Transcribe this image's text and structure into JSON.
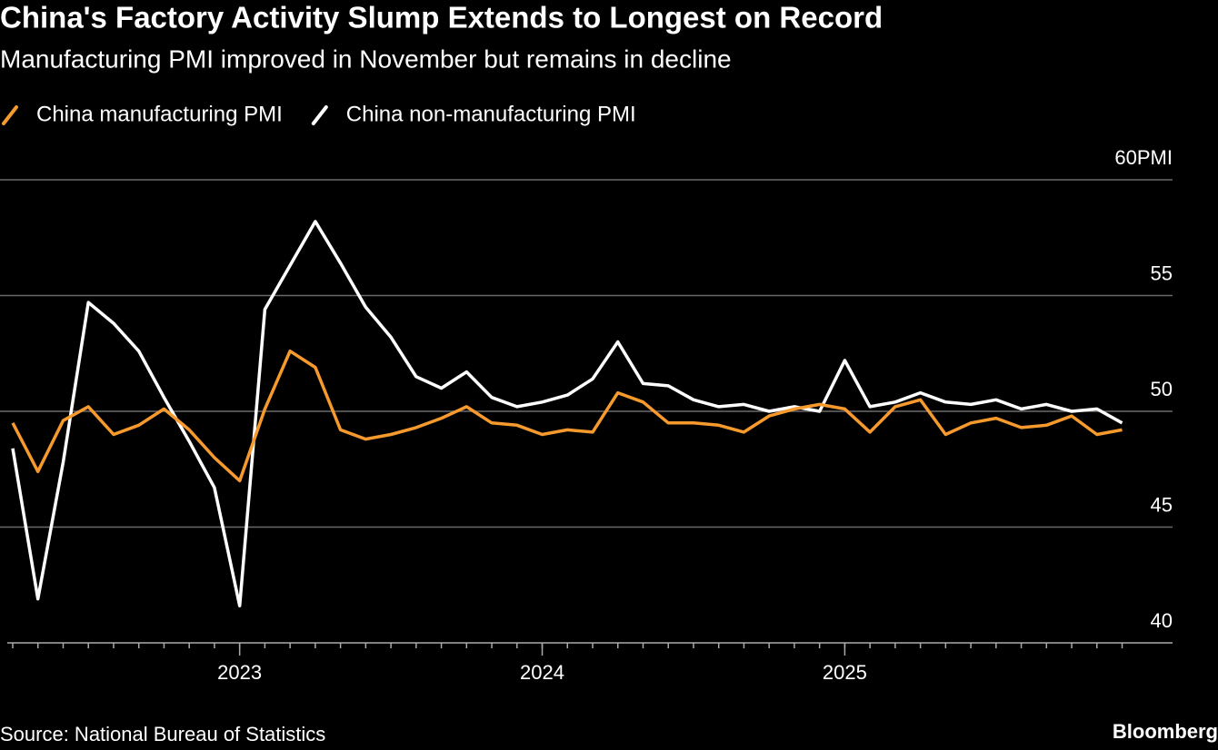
{
  "chart_data": {
    "type": "line",
    "title": "China's Factory Activity Slump Extends to Longest on Record",
    "subtitle": "Manufacturing PMI improved in November but remains in decline",
    "source": "Source: National Bureau of Statistics",
    "brand": "Bloomberg",
    "x": [
      "2022-03",
      "2022-04",
      "2022-05",
      "2022-06",
      "2022-07",
      "2022-08",
      "2022-09",
      "2022-10",
      "2022-11",
      "2022-12",
      "2023-01",
      "2023-02",
      "2023-03",
      "2023-04",
      "2023-05",
      "2023-06",
      "2023-07",
      "2023-08",
      "2023-09",
      "2023-10",
      "2023-11",
      "2023-12",
      "2024-01",
      "2024-02",
      "2024-03",
      "2024-04",
      "2024-05",
      "2024-06",
      "2024-07",
      "2024-08",
      "2024-09",
      "2024-10",
      "2024-11",
      "2024-12",
      "2025-01",
      "2025-02",
      "2025-03",
      "2025-04",
      "2025-05",
      "2025-06",
      "2025-07",
      "2025-08",
      "2025-09",
      "2025-10",
      "2025-11"
    ],
    "series": [
      {
        "name": "China manufacturing PMI",
        "color": "#f79a2e",
        "values": [
          49.5,
          47.4,
          49.6,
          50.2,
          49.0,
          49.4,
          50.1,
          49.2,
          48.0,
          47.0,
          50.1,
          52.6,
          51.9,
          49.2,
          48.8,
          49.0,
          49.3,
          49.7,
          50.2,
          49.5,
          49.4,
          49.0,
          49.2,
          49.1,
          50.8,
          50.4,
          49.5,
          49.5,
          49.4,
          49.1,
          49.8,
          50.1,
          50.3,
          50.1,
          49.1,
          50.2,
          50.5,
          49.0,
          49.5,
          49.7,
          49.3,
          49.4,
          49.8,
          49.0,
          49.2
        ]
      },
      {
        "name": "China non-manufacturing PMI",
        "color": "#ffffff",
        "values": [
          48.4,
          41.9,
          47.8,
          54.7,
          53.8,
          52.6,
          50.6,
          48.7,
          46.7,
          41.6,
          54.4,
          56.3,
          58.2,
          56.4,
          54.5,
          53.2,
          51.5,
          51.0,
          51.7,
          50.6,
          50.2,
          50.4,
          50.7,
          51.4,
          53.0,
          51.2,
          51.1,
          50.5,
          50.2,
          50.3,
          50.0,
          50.2,
          50.0,
          52.2,
          50.2,
          50.4,
          50.8,
          50.4,
          50.3,
          50.5,
          50.1,
          50.3,
          50.0,
          50.1,
          49.5
        ]
      }
    ],
    "xlim": [
      "2022-03",
      "2026-01"
    ],
    "xticks": [
      {
        "value": "2022-12",
        "label": "2023"
      },
      {
        "value": "2023-12",
        "label": "2024"
      },
      {
        "value": "2024-12",
        "label": "2025"
      }
    ],
    "ylim": [
      40,
      60
    ],
    "yticks": [
      40,
      45,
      50,
      55,
      {
        "value": 60,
        "label": "60PMI"
      }
    ],
    "grid": true
  }
}
